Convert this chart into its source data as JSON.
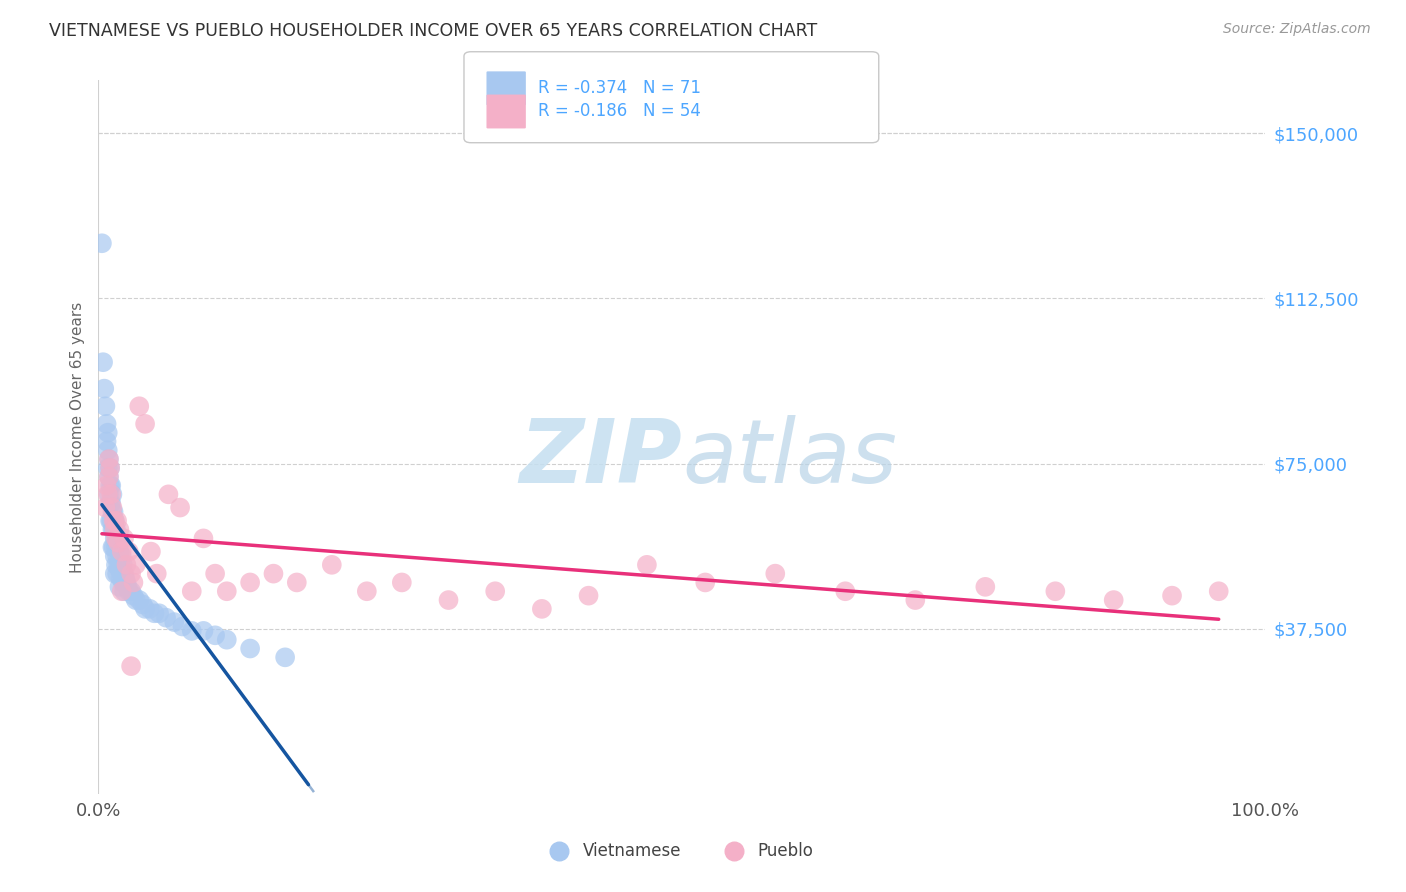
{
  "title": "VIETNAMESE VS PUEBLO HOUSEHOLDER INCOME OVER 65 YEARS CORRELATION CHART",
  "source": "Source: ZipAtlas.com",
  "ylabel": "Householder Income Over 65 years",
  "xlim": [
    0.0,
    1.0
  ],
  "ylim": [
    0,
    162000
  ],
  "ytick_values": [
    37500,
    75000,
    112500,
    150000
  ],
  "ytick_labels": [
    "$37,500",
    "$75,000",
    "$112,500",
    "$150,000"
  ],
  "xtick_values": [
    0.0,
    1.0
  ],
  "xtick_labels": [
    "0.0%",
    "100.0%"
  ],
  "background_color": "#ffffff",
  "grid_color": "#d0d0d0",
  "viet_color": "#a8c8f0",
  "pueblo_color": "#f4b0c8",
  "viet_line_color": "#1555a0",
  "pueblo_line_color": "#e8307a",
  "viet_R": -0.374,
  "viet_N": 71,
  "pueblo_R": -0.186,
  "pueblo_N": 54,
  "legend_text_color": "#4da6ff",
  "axis_label_color": "#666666",
  "title_color": "#333333",
  "source_color": "#999999",
  "watermark_color": "#cce4f5",
  "viet_x": [
    0.004,
    0.005,
    0.006,
    0.007,
    0.007,
    0.008,
    0.008,
    0.008,
    0.009,
    0.009,
    0.009,
    0.01,
    0.01,
    0.01,
    0.01,
    0.011,
    0.011,
    0.011,
    0.012,
    0.012,
    0.012,
    0.012,
    0.013,
    0.013,
    0.013,
    0.014,
    0.014,
    0.014,
    0.014,
    0.015,
    0.015,
    0.015,
    0.016,
    0.016,
    0.016,
    0.017,
    0.017,
    0.018,
    0.018,
    0.018,
    0.019,
    0.019,
    0.02,
    0.02,
    0.021,
    0.021,
    0.022,
    0.022,
    0.023,
    0.024,
    0.025,
    0.026,
    0.028,
    0.03,
    0.032,
    0.035,
    0.038,
    0.04,
    0.044,
    0.048,
    0.052,
    0.058,
    0.065,
    0.072,
    0.08,
    0.09,
    0.1,
    0.11,
    0.13,
    0.16,
    0.003
  ],
  "viet_y": [
    98000,
    92000,
    88000,
    84000,
    80000,
    82000,
    78000,
    74000,
    76000,
    72000,
    68000,
    74000,
    70000,
    66000,
    62000,
    70000,
    66000,
    62000,
    68000,
    64000,
    60000,
    56000,
    64000,
    60000,
    56000,
    62000,
    58000,
    54000,
    50000,
    60000,
    56000,
    52000,
    58000,
    54000,
    50000,
    56000,
    52000,
    55000,
    51000,
    47000,
    53000,
    49000,
    54000,
    50000,
    52000,
    48000,
    50000,
    46000,
    49000,
    48000,
    47000,
    46000,
    46000,
    45000,
    44000,
    44000,
    43000,
    42000,
    42000,
    41000,
    41000,
    40000,
    39000,
    38000,
    37000,
    37000,
    36000,
    35000,
    33000,
    31000,
    125000
  ],
  "pueblo_x": [
    0.006,
    0.007,
    0.008,
    0.009,
    0.01,
    0.011,
    0.012,
    0.013,
    0.014,
    0.015,
    0.016,
    0.017,
    0.018,
    0.02,
    0.022,
    0.024,
    0.026,
    0.028,
    0.03,
    0.032,
    0.035,
    0.04,
    0.045,
    0.05,
    0.06,
    0.07,
    0.08,
    0.09,
    0.1,
    0.11,
    0.13,
    0.15,
    0.17,
    0.2,
    0.23,
    0.26,
    0.3,
    0.34,
    0.38,
    0.42,
    0.47,
    0.52,
    0.58,
    0.64,
    0.7,
    0.76,
    0.82,
    0.87,
    0.92,
    0.96,
    0.009,
    0.014,
    0.02,
    0.028
  ],
  "pueblo_y": [
    65000,
    70000,
    68000,
    72000,
    74000,
    68000,
    65000,
    62000,
    60000,
    58000,
    62000,
    57000,
    60000,
    55000,
    58000,
    52000,
    55000,
    50000,
    48000,
    52000,
    88000,
    84000,
    55000,
    50000,
    68000,
    65000,
    46000,
    58000,
    50000,
    46000,
    48000,
    50000,
    48000,
    52000,
    46000,
    48000,
    44000,
    46000,
    42000,
    45000,
    52000,
    48000,
    50000,
    46000,
    44000,
    47000,
    46000,
    44000,
    45000,
    46000,
    76000,
    62000,
    46000,
    29000
  ]
}
